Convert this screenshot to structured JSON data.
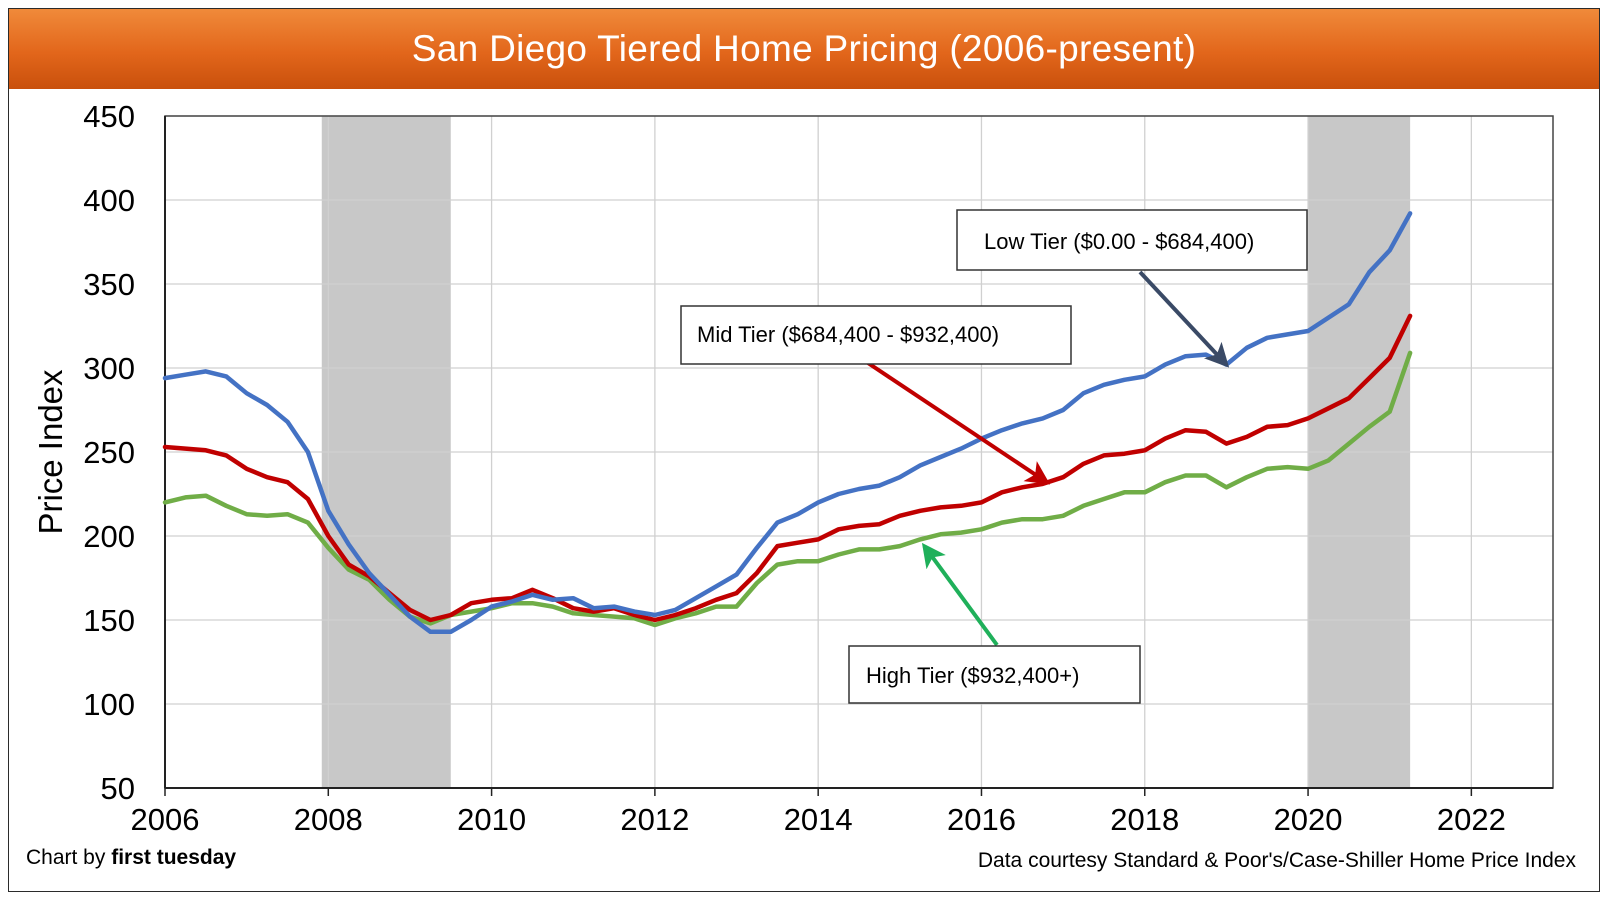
{
  "title": "San Diego Tiered Home Pricing (2006-present)",
  "credits": {
    "left_prefix": "Chart by ",
    "left_brand": "first tuesday",
    "right": "Data courtesy Standard & Poor's/Case-Shiller Home Price Index"
  },
  "colors": {
    "low": "#4472c4",
    "mid": "#c00000",
    "high": "#70ad47",
    "recession": "#c8c8c8"
  },
  "chart_data": {
    "type": "line",
    "ylabel": "Price Index",
    "xlabel": "",
    "xlim": [
      2006,
      2023
    ],
    "ylim": [
      50,
      450
    ],
    "xticks": [
      2006,
      2008,
      2010,
      2012,
      2014,
      2016,
      2018,
      2020,
      2022
    ],
    "yticks": [
      50,
      100,
      150,
      200,
      250,
      300,
      350,
      400,
      450
    ],
    "grid": true,
    "shaded_periods": [
      [
        2007.92,
        2009.5
      ],
      [
        2020.0,
        2021.25
      ]
    ],
    "series": [
      {
        "name": "Low Tier ($0.00 - $684,400)",
        "key": "low",
        "x": [
          2006,
          2006.25,
          2006.5,
          2006.75,
          2007,
          2007.25,
          2007.5,
          2007.75,
          2008,
          2008.25,
          2008.5,
          2008.75,
          2009,
          2009.25,
          2009.5,
          2009.75,
          2010,
          2010.25,
          2010.5,
          2010.75,
          2011,
          2011.25,
          2011.5,
          2011.75,
          2012,
          2012.25,
          2012.5,
          2012.75,
          2013,
          2013.25,
          2013.5,
          2013.75,
          2014,
          2014.25,
          2014.5,
          2014.75,
          2015,
          2015.25,
          2015.5,
          2015.75,
          2016,
          2016.25,
          2016.5,
          2016.75,
          2017,
          2017.25,
          2017.5,
          2017.75,
          2018,
          2018.25,
          2018.5,
          2018.75,
          2019,
          2019.25,
          2019.5,
          2019.75,
          2020,
          2020.25,
          2020.5,
          2020.75,
          2021,
          2021.25
        ],
        "y": [
          294,
          296,
          298,
          295,
          285,
          278,
          268,
          250,
          215,
          195,
          178,
          165,
          152,
          143,
          143,
          150,
          158,
          161,
          165,
          162,
          163,
          157,
          158,
          155,
          153,
          156,
          163,
          170,
          177,
          193,
          208,
          213,
          220,
          225,
          228,
          230,
          235,
          242,
          247,
          252,
          258,
          263,
          267,
          270,
          275,
          285,
          290,
          293,
          295,
          302,
          307,
          308,
          302,
          312,
          318,
          320,
          322,
          330,
          338,
          357,
          370,
          392
        ]
      },
      {
        "name": "Mid Tier ($684,400 - $932,400)",
        "key": "mid",
        "x": [
          2006,
          2006.25,
          2006.5,
          2006.75,
          2007,
          2007.25,
          2007.5,
          2007.75,
          2008,
          2008.25,
          2008.5,
          2008.75,
          2009,
          2009.25,
          2009.5,
          2009.75,
          2010,
          2010.25,
          2010.5,
          2010.75,
          2011,
          2011.25,
          2011.5,
          2011.75,
          2012,
          2012.25,
          2012.5,
          2012.75,
          2013,
          2013.25,
          2013.5,
          2013.75,
          2014,
          2014.25,
          2014.5,
          2014.75,
          2015,
          2015.25,
          2015.5,
          2015.75,
          2016,
          2016.25,
          2016.5,
          2016.75,
          2017,
          2017.25,
          2017.5,
          2017.75,
          2018,
          2018.25,
          2018.5,
          2018.75,
          2019,
          2019.25,
          2019.5,
          2019.75,
          2020,
          2020.25,
          2020.5,
          2020.75,
          2021,
          2021.25
        ],
        "y": [
          253,
          252,
          251,
          248,
          240,
          235,
          232,
          222,
          200,
          183,
          176,
          166,
          156,
          150,
          153,
          160,
          162,
          163,
          168,
          163,
          157,
          155,
          157,
          153,
          150,
          153,
          157,
          162,
          166,
          178,
          194,
          196,
          198,
          204,
          206,
          207,
          212,
          215,
          217,
          218,
          220,
          226,
          229,
          231,
          235,
          243,
          248,
          249,
          251,
          258,
          263,
          262,
          255,
          259,
          265,
          266,
          270,
          276,
          282,
          294,
          306,
          331
        ]
      },
      {
        "name": "High Tier ($932,400+)",
        "key": "high",
        "x": [
          2006,
          2006.25,
          2006.5,
          2006.75,
          2007,
          2007.25,
          2007.5,
          2007.75,
          2008,
          2008.25,
          2008.5,
          2008.75,
          2009,
          2009.25,
          2009.5,
          2009.75,
          2010,
          2010.25,
          2010.5,
          2010.75,
          2011,
          2011.25,
          2011.5,
          2011.75,
          2012,
          2012.25,
          2012.5,
          2012.75,
          2013,
          2013.25,
          2013.5,
          2013.75,
          2014,
          2014.25,
          2014.5,
          2014.75,
          2015,
          2015.25,
          2015.5,
          2015.75,
          2016,
          2016.25,
          2016.5,
          2016.75,
          2017,
          2017.25,
          2017.5,
          2017.75,
          2018,
          2018.25,
          2018.5,
          2018.75,
          2019,
          2019.25,
          2019.5,
          2019.75,
          2020,
          2020.25,
          2020.5,
          2020.75,
          2021,
          2021.25
        ],
        "y": [
          220,
          223,
          224,
          218,
          213,
          212,
          213,
          208,
          193,
          180,
          174,
          162,
          152,
          148,
          153,
          155,
          157,
          160,
          160,
          158,
          154,
          153,
          152,
          151,
          147,
          151,
          154,
          158,
          158,
          172,
          183,
          185,
          185,
          189,
          192,
          192,
          194,
          198,
          201,
          202,
          204,
          208,
          210,
          210,
          212,
          218,
          222,
          226,
          226,
          232,
          236,
          236,
          229,
          235,
          240,
          241,
          240,
          245,
          255,
          265,
          274,
          309
        ]
      }
    ],
    "annotations": [
      {
        "series": "low",
        "text": "Low Tier ($0.00 - $684,400)",
        "arrow_to": [
          2019.0,
          302
        ]
      },
      {
        "series": "mid",
        "text": "Mid Tier ($684,400 - $932,400)",
        "arrow_to": [
          2016.8,
          232
        ]
      },
      {
        "series": "high",
        "text": "High Tier ($932,400+)",
        "arrow_to": [
          2015.3,
          194
        ]
      }
    ]
  }
}
